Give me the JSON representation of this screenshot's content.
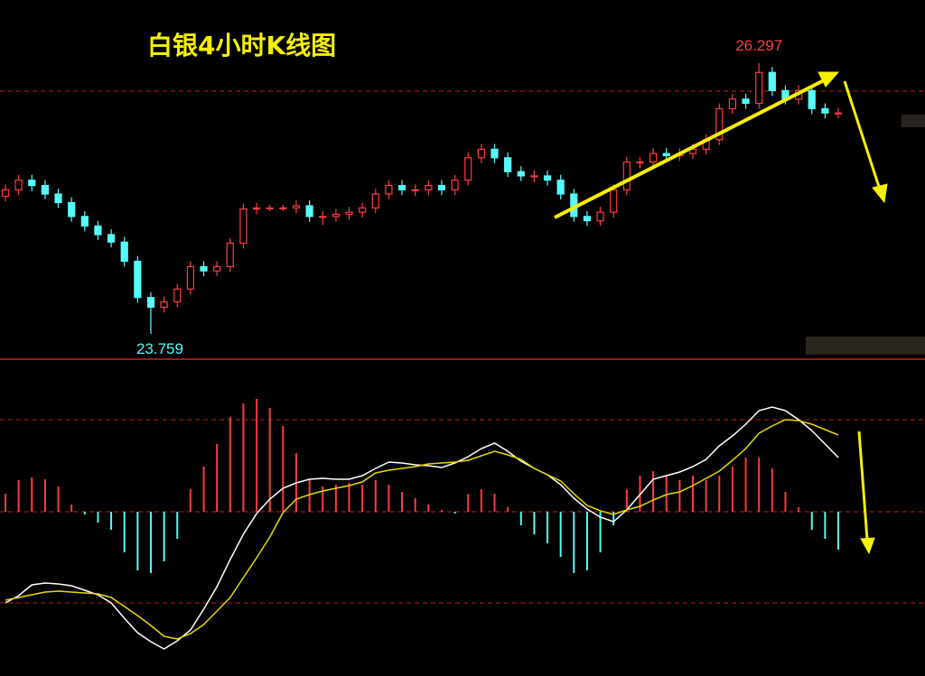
{
  "chart_data": [
    {
      "type": "candlestick",
      "title": "白银4小时K线图",
      "up_color": "#ff3c3c",
      "down_color": "#54fcfc",
      "ylim": [
        23.573,
        26.415
      ],
      "open": [
        25.05,
        25.11,
        25.2,
        25.15,
        25.07,
        24.99,
        24.86,
        24.77,
        24.69,
        24.62,
        24.44,
        24.1,
        24.01,
        24.06,
        24.18,
        24.39,
        24.35,
        24.39,
        24.61,
        24.93,
        24.94,
        24.94,
        24.94,
        24.96,
        24.86,
        24.86,
        24.88,
        24.9,
        24.94,
        25.07,
        25.15,
        25.11,
        25.11,
        25.15,
        25.11,
        25.2,
        25.41,
        25.49,
        25.41,
        25.28,
        25.24,
        25.24,
        25.2,
        25.07,
        24.86,
        24.82,
        24.9,
        25.11,
        25.37,
        25.37,
        25.45,
        25.43,
        25.45,
        25.49,
        25.58,
        25.87,
        25.96,
        25.92,
        26.21,
        26.04,
        25.96,
        26.04,
        25.87,
        25.83
      ],
      "high": [
        25.16,
        25.25,
        25.25,
        25.2,
        25.12,
        25.04,
        24.91,
        24.82,
        24.74,
        24.67,
        24.49,
        24.15,
        24.11,
        24.23,
        24.44,
        24.44,
        24.44,
        24.66,
        24.98,
        24.99,
        24.97,
        24.97,
        25.01,
        25.01,
        24.91,
        24.93,
        24.95,
        24.99,
        25.12,
        25.2,
        25.2,
        25.16,
        25.2,
        25.2,
        25.25,
        25.46,
        25.54,
        25.54,
        25.46,
        25.33,
        25.29,
        25.29,
        25.25,
        25.12,
        24.91,
        24.95,
        25.16,
        25.42,
        25.42,
        25.5,
        25.5,
        25.5,
        25.54,
        25.63,
        25.92,
        26.01,
        26.01,
        26.297,
        26.26,
        26.09,
        26.09,
        26.09,
        25.92,
        25.88
      ],
      "low": [
        25.0,
        25.06,
        25.1,
        25.02,
        24.94,
        24.81,
        24.72,
        24.64,
        24.57,
        24.39,
        24.05,
        23.759,
        23.96,
        24.01,
        24.13,
        24.3,
        24.3,
        24.34,
        24.56,
        24.88,
        24.91,
        24.91,
        24.89,
        24.81,
        24.78,
        24.81,
        24.83,
        24.85,
        24.89,
        25.02,
        25.06,
        25.05,
        25.06,
        25.06,
        25.06,
        25.15,
        25.36,
        25.36,
        25.23,
        25.19,
        25.18,
        25.15,
        25.02,
        24.81,
        24.77,
        24.77,
        24.85,
        25.06,
        25.31,
        25.32,
        25.38,
        25.38,
        25.4,
        25.44,
        25.53,
        25.82,
        25.87,
        25.87,
        25.99,
        25.91,
        25.91,
        25.82,
        25.78,
        25.78
      ],
      "close": [
        25.11,
        25.2,
        25.15,
        25.07,
        24.99,
        24.86,
        24.77,
        24.69,
        24.62,
        24.44,
        24.1,
        24.01,
        24.06,
        24.18,
        24.39,
        24.35,
        24.39,
        24.61,
        24.93,
        24.94,
        24.94,
        24.94,
        24.96,
        24.86,
        24.86,
        24.88,
        24.9,
        24.94,
        25.07,
        25.15,
        25.11,
        25.11,
        25.15,
        25.11,
        25.2,
        25.41,
        25.49,
        25.41,
        25.28,
        25.24,
        25.24,
        25.2,
        25.07,
        24.86,
        24.82,
        24.9,
        25.11,
        25.37,
        25.37,
        25.45,
        25.43,
        25.45,
        25.49,
        25.58,
        25.87,
        25.96,
        25.92,
        26.21,
        26.04,
        25.96,
        26.04,
        25.87,
        25.83,
        25.83
      ]
    },
    {
      "type": "macd",
      "ylim": [
        -0.178,
        0.162
      ],
      "histogram": {
        "up_color": "#ff3c3c",
        "down_color": "#54fcfc",
        "values": [
          0.02,
          0.035,
          0.038,
          0.036,
          0.028,
          0.008,
          -0.003,
          -0.012,
          -0.02,
          -0.045,
          -0.065,
          -0.068,
          -0.055,
          -0.03,
          0.025,
          0.05,
          0.075,
          0.105,
          0.12,
          0.125,
          0.115,
          0.095,
          0.065,
          0.035,
          0.028,
          0.03,
          0.032,
          0.03,
          0.035,
          0.03,
          0.022,
          0.015,
          0.008,
          0.002,
          -0.002,
          0.02,
          0.025,
          0.02,
          0.005,
          -0.015,
          -0.025,
          -0.035,
          -0.05,
          -0.068,
          -0.065,
          -0.045,
          -0.015,
          0.025,
          0.04,
          0.045,
          0.04,
          0.035,
          0.04,
          0.035,
          0.04,
          0.05,
          0.06,
          0.06,
          0.048,
          0.022,
          0.005,
          -0.02,
          -0.03,
          -0.042
        ]
      },
      "lines": [
        {
          "color": "#ffffff",
          "values": [
            -0.101,
            -0.093,
            -0.081,
            -0.079,
            -0.08,
            -0.082,
            -0.087,
            -0.092,
            -0.101,
            -0.118,
            -0.134,
            -0.144,
            -0.152,
            -0.143,
            -0.131,
            -0.108,
            -0.083,
            -0.053,
            -0.025,
            -0.002,
            0.014,
            0.026,
            0.032,
            0.036,
            0.037,
            0.036,
            0.036,
            0.04,
            0.048,
            0.055,
            0.054,
            0.052,
            0.051,
            0.049,
            0.054,
            0.061,
            0.07,
            0.076,
            0.067,
            0.056,
            0.048,
            0.041,
            0.03,
            0.015,
            0.003,
            -0.006,
            -0.011,
            0.002,
            0.019,
            0.036,
            0.04,
            0.044,
            0.05,
            0.058,
            0.073,
            0.084,
            0.097,
            0.112,
            0.116,
            0.112,
            0.102,
            0.09,
            0.075,
            0.06
          ]
        },
        {
          "color": "#e8d800",
          "values": [
            -0.098,
            -0.095,
            -0.092,
            -0.089,
            -0.088,
            -0.089,
            -0.09,
            -0.091,
            -0.095,
            -0.105,
            -0.115,
            -0.126,
            -0.138,
            -0.141,
            -0.135,
            -0.125,
            -0.11,
            -0.095,
            -0.073,
            -0.051,
            -0.028,
            -0.001,
            0.014,
            0.019,
            0.023,
            0.026,
            0.029,
            0.033,
            0.043,
            0.046,
            0.048,
            0.05,
            0.053,
            0.054,
            0.055,
            0.057,
            0.062,
            0.067,
            0.063,
            0.058,
            0.048,
            0.041,
            0.034,
            0.02,
            0.007,
            0.001,
            -0.003,
            0.002,
            0.006,
            0.013,
            0.019,
            0.022,
            0.029,
            0.037,
            0.045,
            0.057,
            0.07,
            0.087,
            0.095,
            0.102,
            0.101,
            0.097,
            0.091,
            0.085
          ]
        }
      ]
    }
  ]
}
